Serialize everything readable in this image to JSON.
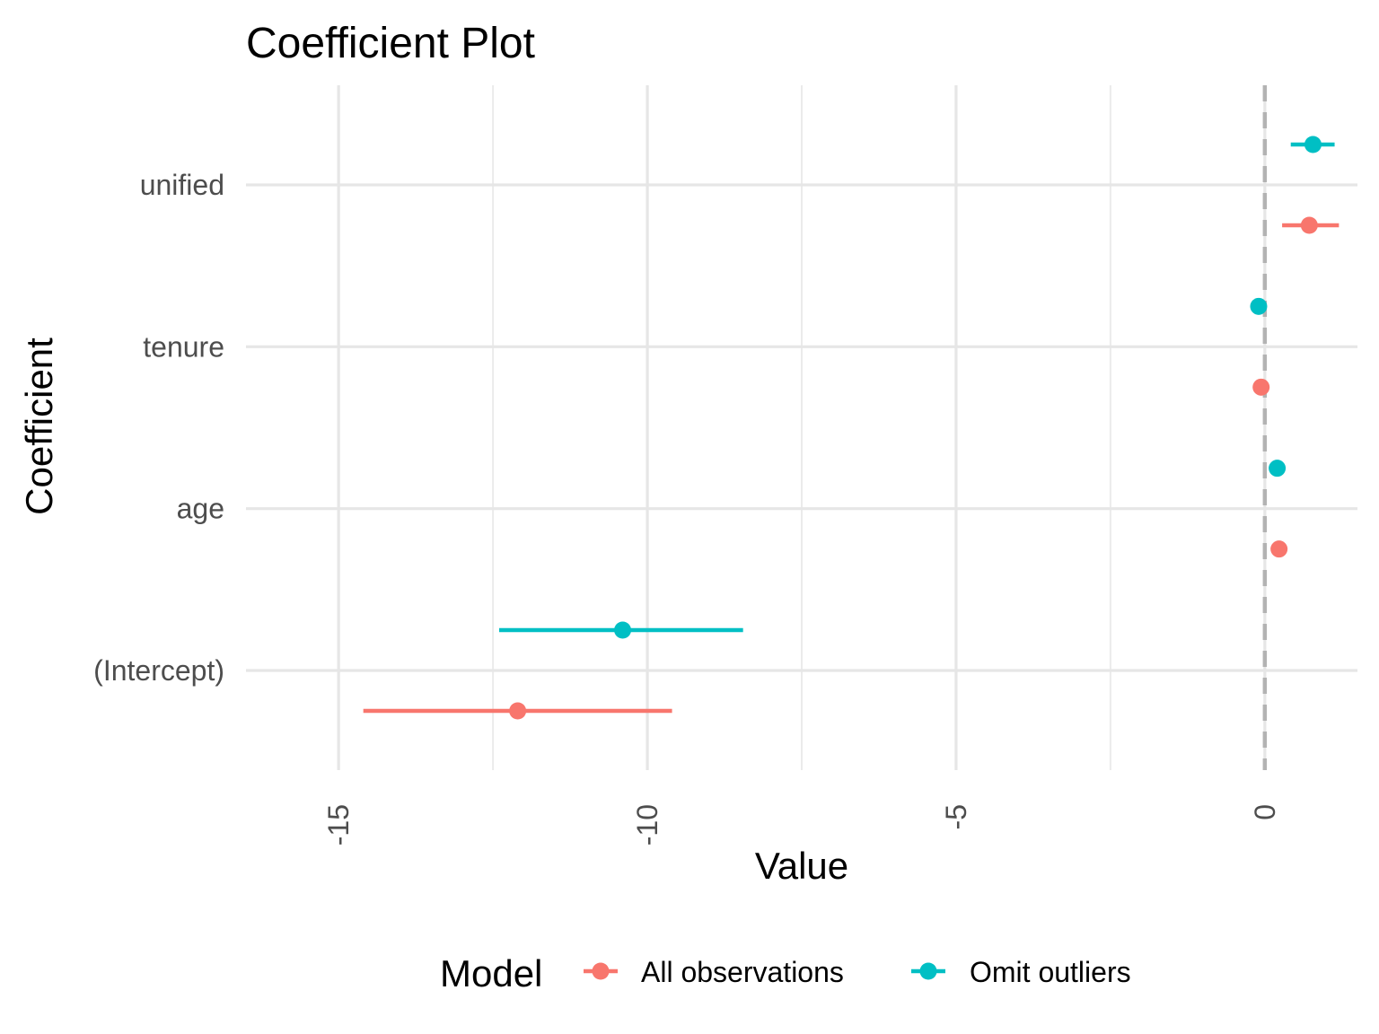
{
  "chart_data": {
    "type": "scatter",
    "title": "Coefficient Plot",
    "xlabel": "Value",
    "ylabel": "Coefficient",
    "categories": [
      "(Intercept)",
      "age",
      "tenure",
      "unified"
    ],
    "xlim": [
      -16.5,
      1.5
    ],
    "x_ticks": [
      -15,
      -10,
      -5,
      0
    ],
    "x_tick_labels": [
      "-15",
      "-10",
      "-5",
      "0"
    ],
    "reference_line": 0,
    "grid": true,
    "legend": {
      "title": "Model",
      "position": "bottom"
    },
    "series": [
      {
        "name": "All observations",
        "color": "#F8766D",
        "points": [
          {
            "coefficient": "(Intercept)",
            "estimate": -12.1,
            "low": -14.6,
            "high": -9.6
          },
          {
            "coefficient": "age",
            "estimate": 0.23,
            "low": 0.23,
            "high": 0.23
          },
          {
            "coefficient": "tenure",
            "estimate": -0.06,
            "low": -0.06,
            "high": -0.06
          },
          {
            "coefficient": "unified",
            "estimate": 0.72,
            "low": 0.28,
            "high": 1.2
          }
        ]
      },
      {
        "name": "Omit outliers",
        "color": "#00BFC4",
        "points": [
          {
            "coefficient": "(Intercept)",
            "estimate": -10.4,
            "low": -12.4,
            "high": -8.45
          },
          {
            "coefficient": "age",
            "estimate": 0.2,
            "low": 0.2,
            "high": 0.2
          },
          {
            "coefficient": "tenure",
            "estimate": -0.1,
            "low": -0.1,
            "high": -0.1
          },
          {
            "coefficient": "unified",
            "estimate": 0.78,
            "low": 0.42,
            "high": 1.13
          }
        ]
      }
    ]
  }
}
